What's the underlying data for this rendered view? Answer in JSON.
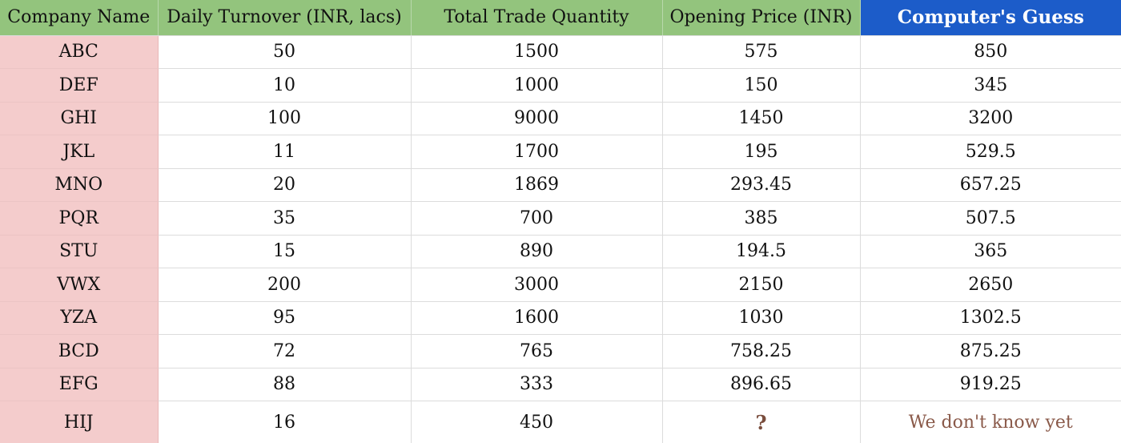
{
  "table": {
    "headers": [
      "Company Name",
      "Daily Turnover (INR, lacs)",
      "Total Trade Quantity",
      "Opening Price (INR)",
      "Computer's Guess"
    ],
    "rows": [
      [
        "ABC",
        "50",
        "1500",
        "575",
        "850"
      ],
      [
        "DEF",
        "10",
        "1000",
        "150",
        "345"
      ],
      [
        "GHI",
        "100",
        "9000",
        "1450",
        "3200"
      ],
      [
        "JKL",
        "11",
        "1700",
        "195",
        "529.5"
      ],
      [
        "MNO",
        "20",
        "1869",
        "293.45",
        "657.25"
      ],
      [
        "PQR",
        "35",
        "700",
        "385",
        "507.5"
      ],
      [
        "STU",
        "15",
        "890",
        "194.5",
        "365"
      ],
      [
        "VWX",
        "200",
        "3000",
        "2150",
        "2650"
      ],
      [
        "YZA",
        "95",
        "1600",
        "1030",
        "1302.5"
      ],
      [
        "BCD",
        "72",
        "765",
        "758.25",
        "875.25"
      ],
      [
        "EFG",
        "88",
        "333",
        "896.65",
        "919.25"
      ],
      [
        "HIJ",
        "16",
        "450",
        "?",
        "We don't know yet"
      ]
    ]
  },
  "colors": {
    "header_bg": "#93c47d",
    "accent_header_bg": "#1c5cc9",
    "name_cell_bg": "#f4cccc",
    "unknown_text": "#8a5a4a"
  }
}
